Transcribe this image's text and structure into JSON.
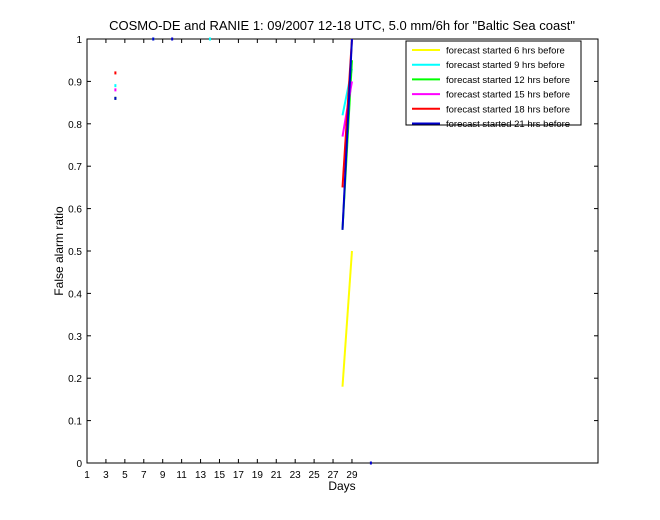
{
  "chart_data": {
    "type": "line",
    "title": "COSMO-DE and RANIE 1: 09/2007 12-18 UTC, 5.0 mm/6h for \"Baltic Sea coast\"",
    "xlabel": "Days",
    "ylabel": "False alarm ratio",
    "xlim": [
      1,
      55
    ],
    "ylim": [
      0,
      1
    ],
    "xticks": [
      1,
      3,
      5,
      7,
      9,
      11,
      13,
      15,
      17,
      19,
      21,
      23,
      25,
      27,
      29
    ],
    "yticks": [
      0,
      0.1,
      0.2,
      0.3,
      0.4,
      0.5,
      0.6,
      0.7,
      0.8,
      0.9,
      1
    ],
    "ytick_labels": [
      "0",
      "0.1",
      "0.2",
      "0.3",
      "0.4",
      "0.5",
      "0.6",
      "0.7",
      "0.8",
      "0.9",
      "1"
    ],
    "legend_position": "top-right",
    "series": [
      {
        "name": "forecast started 6 hrs before",
        "color": "#ffff00",
        "lines": [
          [
            [
              28,
              0.18
            ],
            [
              29,
              0.5
            ]
          ]
        ],
        "dots": [
          [
            4,
            0.86
          ]
        ]
      },
      {
        "name": "forecast started 9 hrs before",
        "color": "#00ffff",
        "lines": [
          [
            [
              28,
              0.82
            ],
            [
              29,
              0.93
            ]
          ]
        ],
        "dots": [
          [
            4,
            0.89
          ],
          [
            8,
            1
          ],
          [
            14,
            1
          ]
        ]
      },
      {
        "name": "forecast started 12 hrs before",
        "color": "#00ff00",
        "lines": [
          [
            [
              28,
              0.55
            ],
            [
              29,
              0.95
            ]
          ]
        ],
        "dots": [
          [
            4,
            0.86
          ]
        ]
      },
      {
        "name": "forecast started 15 hrs before",
        "color": "#ff00ff",
        "lines": [
          [
            [
              28,
              0.77
            ],
            [
              29,
              0.9
            ]
          ]
        ],
        "dots": [
          [
            4,
            0.88
          ]
        ]
      },
      {
        "name": "forecast started 18 hrs before",
        "color": "#ff0000",
        "lines": [
          [
            [
              28,
              0.65
            ],
            [
              29,
              1
            ]
          ]
        ],
        "dots": [
          [
            4,
            0.92
          ]
        ]
      },
      {
        "name": "forecast started 21 hrs before",
        "color": "#0000cc",
        "lines": [
          [
            [
              28,
              0.55
            ],
            [
              29,
              1
            ]
          ]
        ],
        "dots": [
          [
            4,
            0.86
          ],
          [
            8,
            1
          ],
          [
            10,
            1
          ],
          [
            31,
            0
          ]
        ]
      }
    ]
  }
}
